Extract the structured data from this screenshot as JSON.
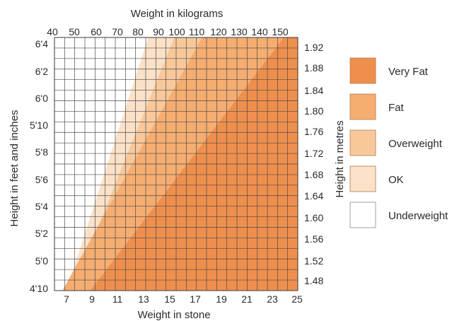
{
  "chart_data": {
    "type": "area",
    "title": "",
    "top_axis_label": "Weight in kilograms",
    "bottom_axis_label": "Weight in stone",
    "left_axis_label": "Height in feet and inches",
    "right_axis_label": "Height in metres",
    "kg_ticks": [
      "40",
      "50",
      "60",
      "70",
      "80",
      "90",
      "100",
      "110",
      "120",
      "130",
      "140",
      "150"
    ],
    "stone_ticks": [
      "7",
      "9",
      "11",
      "13",
      "15",
      "17",
      "19",
      "21",
      "23",
      "25"
    ],
    "feet_ticks": [
      "4'10",
      "5'0",
      "5'2",
      "5'4",
      "5'6",
      "5'8",
      "5'10",
      "6'0",
      "6'2",
      "6'4"
    ],
    "metre_ticks": [
      "1.48",
      "1.52",
      "1.56",
      "1.60",
      "1.64",
      "1.68",
      "1.72",
      "1.76",
      "1.80",
      "1.84",
      "1.88",
      "1.92"
    ],
    "x_range_kg": [
      38,
      160
    ],
    "y_range_m": [
      1.47,
      1.94
    ],
    "grid": true,
    "bands": [
      {
        "label": "Very Fat",
        "color": "#ef8f4d",
        "boundary": [
          {
            "x_kg": 56,
            "y_m": 1.47
          },
          {
            "x_kg": 153,
            "y_m": 1.94
          }
        ]
      },
      {
        "label": "Fat",
        "color": "#f5ad71",
        "boundary": [
          {
            "x_kg": 42,
            "y_m": 1.47
          },
          {
            "x_kg": 112,
            "y_m": 1.94
          }
        ]
      },
      {
        "label": "Overweight",
        "color": "#f8c89a",
        "boundary": [
          {
            "x_kg": 47,
            "y_m": 1.47
          },
          {
            "x_kg": 98,
            "y_m": 1.94
          }
        ]
      },
      {
        "label": "OK",
        "color": "#fbe1c8",
        "boundary": [
          {
            "x_kg": 44,
            "y_m": 1.47
          },
          {
            "x_kg": 85,
            "y_m": 1.94
          }
        ]
      },
      {
        "label": "Underweight",
        "color": "#ffffff",
        "boundary": [
          {
            "x_kg": 38,
            "y_m": 1.47
          },
          {
            "x_kg": 38,
            "y_m": 1.94
          }
        ]
      }
    ],
    "legend_placement": "right",
    "legend": [
      {
        "label": "Very Fat",
        "color": "#ef8f4d"
      },
      {
        "label": "Fat",
        "color": "#f5ad71"
      },
      {
        "label": "Overweight",
        "color": "#f8c89a"
      },
      {
        "label": "OK",
        "color": "#fbe1c8"
      },
      {
        "label": "Underweight",
        "color": "#ffffff"
      }
    ]
  }
}
